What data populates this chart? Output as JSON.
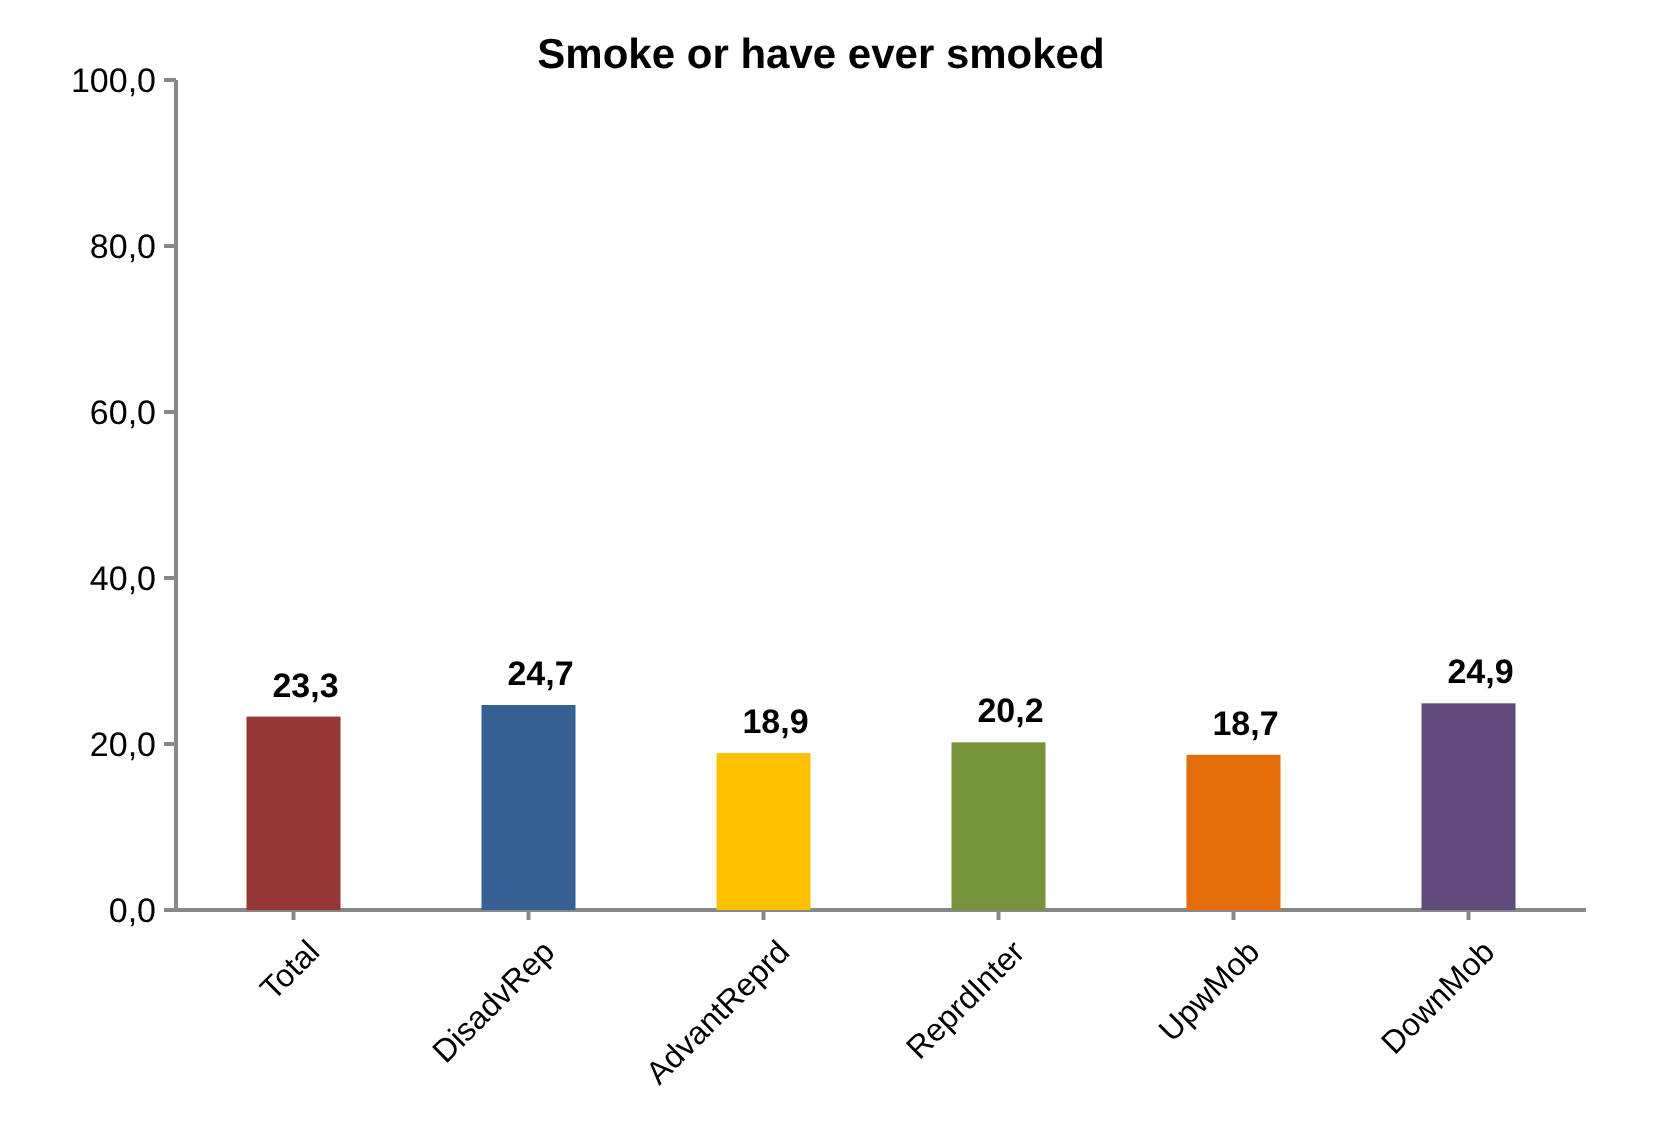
{
  "chart_data": {
    "type": "bar",
    "title": "Smoke or have ever smoked",
    "categories": [
      "Total",
      "DisadvRep",
      "AdvantReprd",
      "ReprdInter",
      "UpwMob",
      "DownMob"
    ],
    "values": [
      23.3,
      24.7,
      18.9,
      20.2,
      18.7,
      24.9
    ],
    "colors": [
      "#953735",
      "#376092",
      "#ffc000",
      "#77933c",
      "#e46c0a",
      "#604a7b"
    ],
    "value_labels": [
      "23,3",
      "24,7",
      "18,9",
      "20,2",
      "18,7",
      "24,9"
    ],
    "ylim": [
      0,
      100
    ],
    "yticks": [
      {
        "value": 0,
        "label": "0,0"
      },
      {
        "value": 20,
        "label": "20,0"
      },
      {
        "value": 40,
        "label": "40,0"
      },
      {
        "value": 60,
        "label": "60,0"
      },
      {
        "value": 80,
        "label": "80,0"
      },
      {
        "value": 100,
        "label": "100,0"
      }
    ],
    "grid": false
  }
}
